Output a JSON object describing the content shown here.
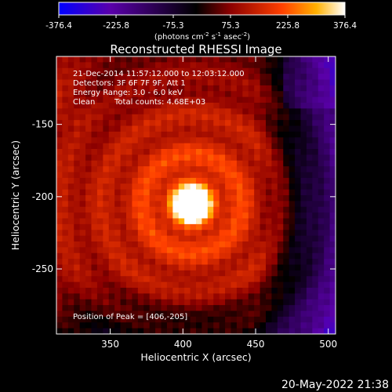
{
  "chart_data": {
    "type": "heatmap",
    "title": "Reconstructed RHESSI Image",
    "xlabel": "Heliocentric X (arcsec)",
    "ylabel": "Heliocentric Y (arcsec)",
    "xlim": [
      313,
      505
    ],
    "ylim": [
      -295,
      -103
    ],
    "x_ticks": [
      "350",
      "400",
      "450",
      "500"
    ],
    "y_ticks": [
      "-150",
      "-200",
      "-250"
    ],
    "x_tick_values": [
      350,
      400,
      450,
      500
    ],
    "y_tick_values": [
      -150,
      -200,
      -250
    ],
    "colorbar": {
      "min": -376.4,
      "max": 376.4,
      "tick_labels": [
        "-376.4",
        "-225.8",
        "-75.3",
        "75.3",
        "225.8",
        "376.4"
      ],
      "tick_values": [
        -376.4,
        -225.8,
        -75.3,
        75.3,
        225.8,
        376.4
      ],
      "unit_parts": [
        "(photons cm",
        "-2",
        " s",
        "-1",
        " asec",
        "-2",
        ")"
      ],
      "colors": [
        "#0000ff",
        "#5a00aa",
        "#000000",
        "#8c0000",
        "#ff4000",
        "#ffb000",
        "#ffffff"
      ]
    },
    "peak": {
      "x": 406,
      "y": -205,
      "value": 376.4
    },
    "annotations": {
      "time_range": "21-Dec-2014 11:57:12.000 to 12:03:12.000",
      "detectors": "Detectors: 3F 6F 7F 9F, Att 1",
      "energy": "Energy Range: 3.0 - 6.0 keV",
      "clean_label": "Clean",
      "total_counts": "Total counts: 4.68E+03",
      "peak_position": "Position of Peak = [406,-205]"
    },
    "timestamp": "20-May-2022 21:38"
  }
}
